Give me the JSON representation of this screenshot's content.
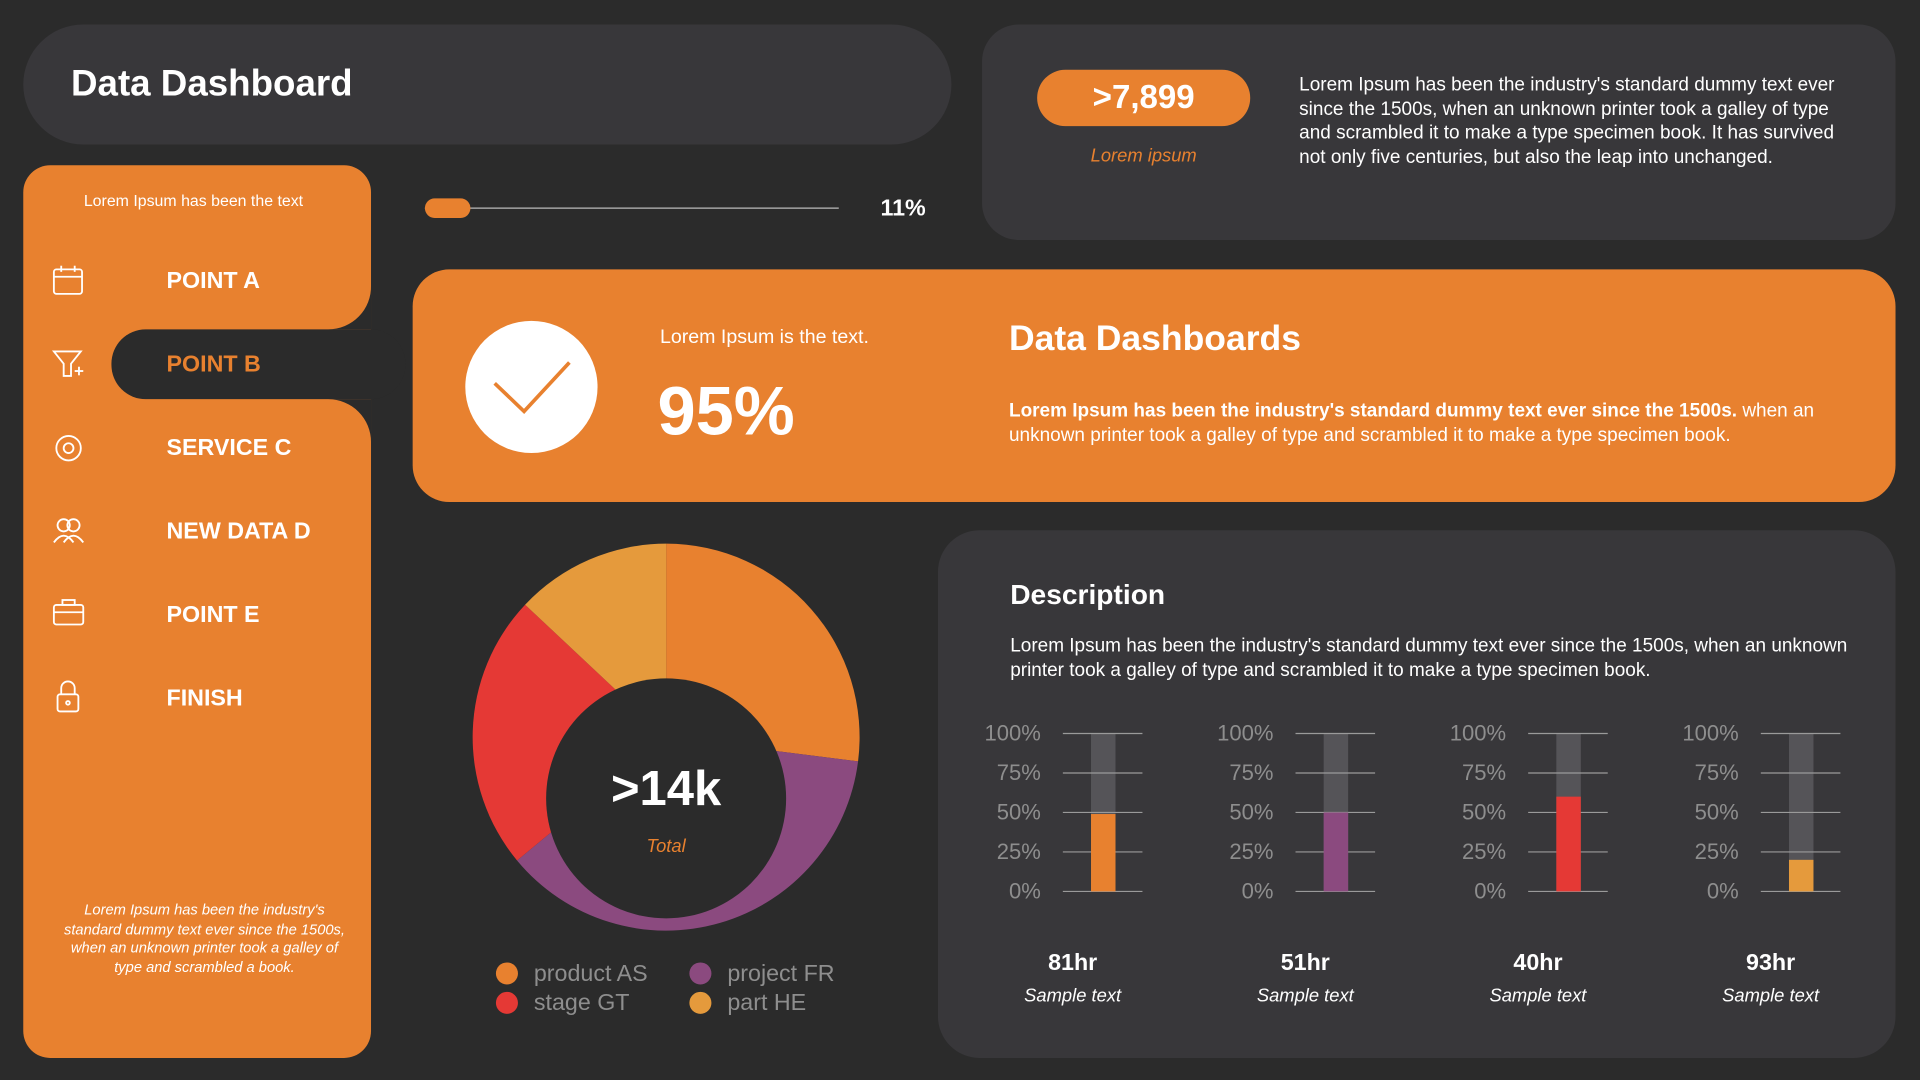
{
  "header": {
    "title": "Data Dashboard"
  },
  "sidebar": {
    "intro": "Lorem Ipsum has been the text",
    "items": [
      "POINT A",
      "POINT B",
      "SERVICE C",
      "NEW DATA D",
      "POINT E",
      "FINISH"
    ],
    "footer": "Lorem Ipsum has been the industry's standard dummy text ever since the 1500s, when an unknown printer took a galley of type and scrambled  a book."
  },
  "progress": {
    "value": 11,
    "label": "11%",
    "range": [
      0,
      100
    ]
  },
  "stats": {
    "value": ">7,899",
    "caption": "Lorem ipsum",
    "text": "Lorem Ipsum has been the industry's standard dummy text ever since the 1500s, when an unknown printer took a galley of type and scrambled it to make a type specimen book. It has survived not only five centuries, but also the leap into unchanged."
  },
  "banner": {
    "subtitle": "Lorem Ipsum is the text.",
    "value": "95%",
    "title": "Data Dashboards",
    "bold_text": "Lorem Ipsum has been the industry's standard dummy text ever since the 1500s.",
    "text": "when an unknown printer took a galley of type and scrambled it to make a type specimen book."
  },
  "description": {
    "title": "Description",
    "text": "Lorem Ipsum has been the industry's standard dummy text ever since the 1500s, when an unknown printer took a galley of type and scrambled it to make a type specimen book."
  },
  "chart_data": [
    {
      "type": "pie",
      "title": ">14k",
      "subtitle": "Total",
      "categories": [
        "product AS",
        "project FR",
        "stage GT",
        "part HE"
      ],
      "values": [
        27,
        37,
        23,
        13
      ],
      "colors": [
        "#e8812f",
        "#8b4a7f",
        "#e53935",
        "#e59a3c"
      ]
    },
    {
      "type": "bar",
      "title": "81hr",
      "subtitle": "Sample text",
      "values": [
        49
      ],
      "color": "#e8812f",
      "ylim": [
        0,
        100
      ],
      "yticks": [
        {
          "value": 0,
          "label": "0%"
        },
        {
          "value": 25,
          "label": "25%"
        },
        {
          "value": 50,
          "label": "50%"
        },
        {
          "value": 75,
          "label": "75%"
        },
        {
          "value": 100,
          "label": "100%"
        }
      ]
    },
    {
      "type": "bar",
      "title": "51hr",
      "subtitle": "Sample text",
      "values": [
        50
      ],
      "color": "#8b4a7f",
      "ylim": [
        0,
        100
      ],
      "yticks": [
        {
          "value": 0,
          "label": "0%"
        },
        {
          "value": 25,
          "label": "25%"
        },
        {
          "value": 50,
          "label": "50%"
        },
        {
          "value": 75,
          "label": "75%"
        },
        {
          "value": 100,
          "label": "100%"
        }
      ]
    },
    {
      "type": "bar",
      "title": "40hr",
      "subtitle": "Sample text",
      "values": [
        60
      ],
      "color": "#e53935",
      "ylim": [
        0,
        100
      ],
      "yticks": [
        {
          "value": 0,
          "label": "0%"
        },
        {
          "value": 25,
          "label": "25%"
        },
        {
          "value": 50,
          "label": "50%"
        },
        {
          "value": 75,
          "label": "75%"
        },
        {
          "value": 100,
          "label": "100%"
        }
      ]
    },
    {
      "type": "bar",
      "title": "93hr",
      "subtitle": "Sample text",
      "values": [
        20
      ],
      "color": "#e59a3c",
      "ylim": [
        0,
        100
      ],
      "yticks": [
        {
          "value": 0,
          "label": "0%"
        },
        {
          "value": 25,
          "label": "25%"
        },
        {
          "value": 50,
          "label": "50%"
        },
        {
          "value": 75,
          "label": "75%"
        },
        {
          "value": 100,
          "label": "100%"
        }
      ]
    }
  ]
}
